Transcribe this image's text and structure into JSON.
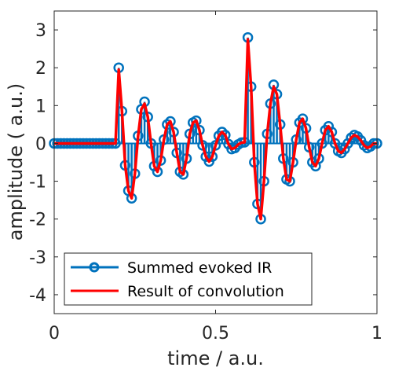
{
  "chart_data": {
    "type": "line",
    "title": "",
    "xlabel": "time / a.u.",
    "ylabel": "amplitude ( a.u.)",
    "xlim": [
      0,
      1
    ],
    "ylim": [
      -4.5,
      3.5
    ],
    "xticks": [
      0,
      0.5,
      1
    ],
    "xtick_labels": [
      "0",
      "0.5",
      "1"
    ],
    "yticks": [
      3,
      2,
      1,
      0,
      -1,
      -2,
      -3,
      -4
    ],
    "ytick_labels": [
      "3",
      "2",
      "1",
      "0",
      "-1",
      "-2",
      "-3",
      "-4"
    ],
    "grid": false,
    "legend_position": "bottom-left",
    "series": [
      {
        "name": "Summed evoked IR",
        "style": "stem with open circle markers",
        "color": "#0072BD",
        "x_start": 0,
        "x_step": 0.01,
        "values": [
          0,
          0,
          0,
          0,
          0,
          0,
          0,
          0,
          0,
          0,
          0,
          0,
          0,
          0,
          0,
          0,
          0,
          0,
          0,
          0,
          2.0,
          0.85,
          -0.58,
          -1.25,
          -1.45,
          -0.8,
          0.2,
          0.9,
          1.1,
          0.7,
          0.0,
          -0.6,
          -0.75,
          -0.45,
          0.1,
          0.5,
          0.58,
          0.3,
          -0.25,
          -0.75,
          -0.82,
          -0.4,
          0.25,
          0.55,
          0.6,
          0.35,
          -0.05,
          -0.35,
          -0.48,
          -0.35,
          -0.05,
          0.2,
          0.3,
          0.22,
          -0.02,
          -0.15,
          -0.12,
          -0.03,
          0.02,
          0.03,
          2.8,
          1.5,
          -0.5,
          -1.6,
          -2.0,
          -1.0,
          0.25,
          1.05,
          1.55,
          1.3,
          0.5,
          -0.4,
          -0.95,
          -1.0,
          -0.5,
          0.1,
          0.55,
          0.65,
          0.4,
          -0.1,
          -0.5,
          -0.6,
          -0.4,
          0.0,
          0.35,
          0.45,
          0.3,
          0.0,
          -0.2,
          -0.25,
          -0.15,
          0.0,
          0.15,
          0.22,
          0.18,
          0.08,
          -0.05,
          -0.12,
          -0.08,
          0.0,
          0.0
        ]
      },
      {
        "name": "Result of convolution",
        "style": "solid line",
        "color": "#FF0000",
        "x_start": 0,
        "x_step": 0.01,
        "values": [
          0,
          0,
          0,
          0,
          0,
          0,
          0,
          0,
          0,
          0,
          0,
          0,
          0,
          0,
          0,
          0,
          0,
          0,
          0,
          0,
          1.95,
          0.85,
          -0.58,
          -1.25,
          -1.45,
          -0.8,
          0.2,
          0.9,
          1.05,
          0.7,
          0.0,
          -0.6,
          -0.75,
          -0.45,
          0.1,
          0.5,
          0.58,
          0.3,
          -0.25,
          -0.75,
          -0.82,
          -0.4,
          0.25,
          0.55,
          0.6,
          0.35,
          -0.05,
          -0.35,
          -0.48,
          -0.35,
          -0.05,
          0.2,
          0.3,
          0.22,
          -0.02,
          -0.15,
          -0.12,
          -0.03,
          0.02,
          0.03,
          2.75,
          1.5,
          -0.5,
          -1.6,
          -2.0,
          -1.0,
          0.25,
          1.05,
          1.5,
          1.3,
          0.5,
          -0.4,
          -0.95,
          -1.0,
          -0.5,
          0.1,
          0.55,
          0.65,
          0.4,
          -0.1,
          -0.5,
          -0.6,
          -0.4,
          0.0,
          0.35,
          0.45,
          0.3,
          0.0,
          -0.2,
          -0.25,
          -0.15,
          0.0,
          0.15,
          0.22,
          0.18,
          0.08,
          -0.05,
          -0.12,
          -0.08,
          0.0,
          0.0
        ]
      }
    ]
  }
}
